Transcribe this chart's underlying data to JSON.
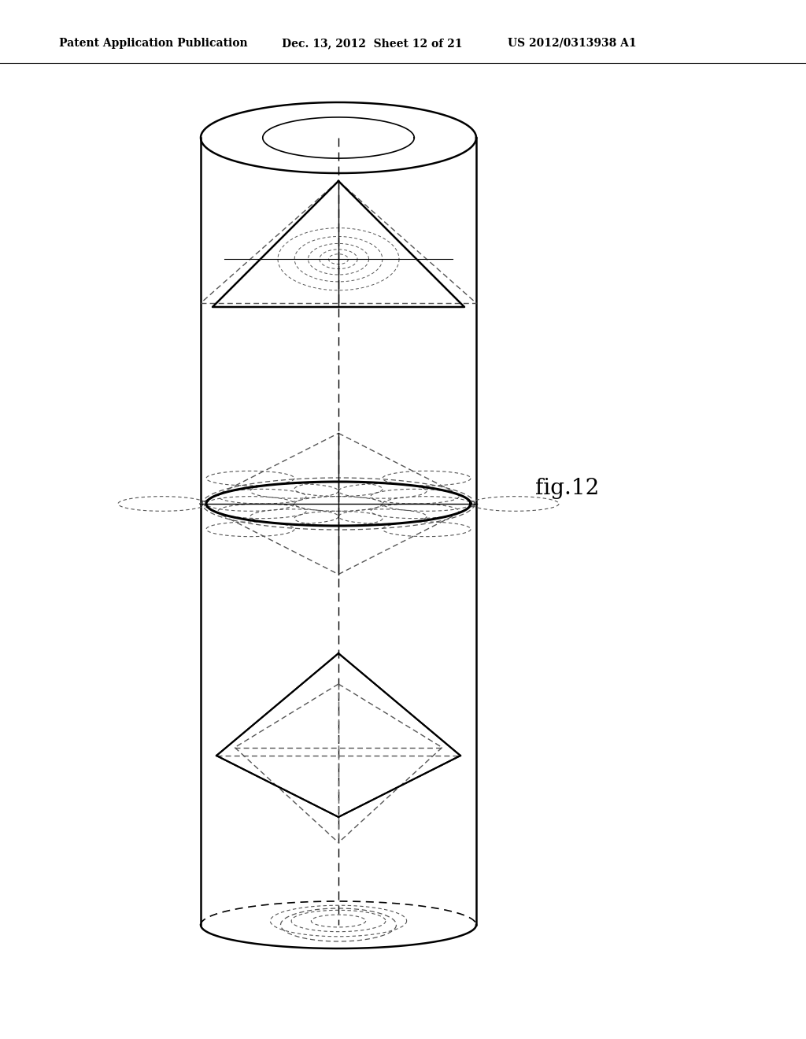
{
  "title_left": "Patent Application Publication",
  "title_mid": "Dec. 13, 2012  Sheet 12 of 21",
  "title_right": "US 2012/0313938 A1",
  "fig_label": "fig.12",
  "bg_color": "#ffffff",
  "line_color": "#000000",
  "dashed_color": "#555555"
}
